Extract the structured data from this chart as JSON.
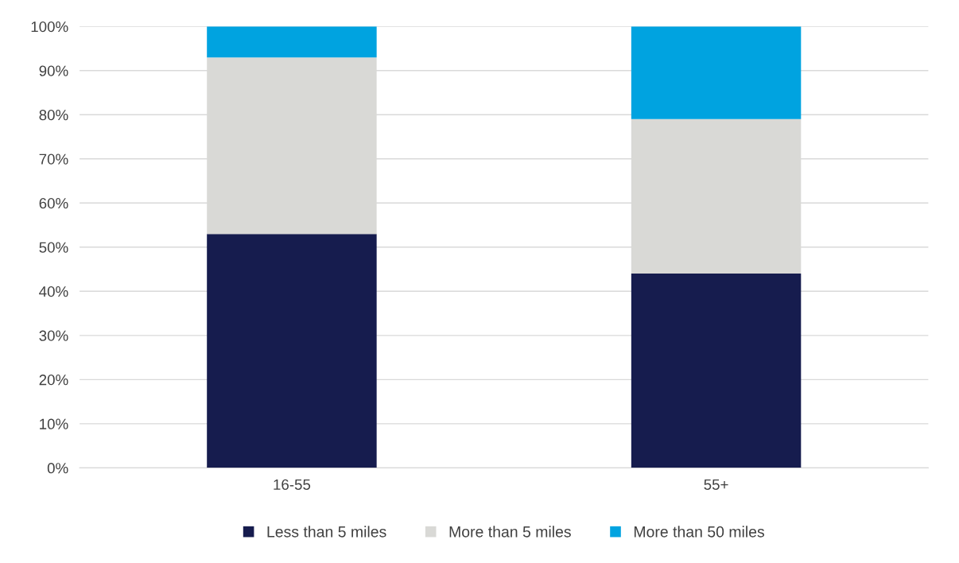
{
  "chart_data": {
    "type": "bar",
    "stacked": true,
    "categories": [
      "16-55",
      "55+"
    ],
    "series": [
      {
        "name": "Less than 5 miles",
        "color": "#161c4e",
        "values": [
          53,
          44
        ]
      },
      {
        "name": "More than 5 miles",
        "color": "#d9d9d6",
        "values": [
          40,
          35
        ]
      },
      {
        "name": "More than 50 miles",
        "color": "#00a3e0",
        "values": [
          7,
          21
        ]
      }
    ],
    "ylim": [
      0,
      100
    ],
    "yticks": [
      {
        "value": 0,
        "label": "0%"
      },
      {
        "value": 10,
        "label": "10%"
      },
      {
        "value": 20,
        "label": "20%"
      },
      {
        "value": 30,
        "label": "30%"
      },
      {
        "value": 40,
        "label": "40%"
      },
      {
        "value": 50,
        "label": "50%"
      },
      {
        "value": 60,
        "label": "60%"
      },
      {
        "value": 70,
        "label": "70%"
      },
      {
        "value": 80,
        "label": "80%"
      },
      {
        "value": 90,
        "label": "90%"
      },
      {
        "value": 100,
        "label": "100%"
      }
    ],
    "grid": "y",
    "legend": "bottom"
  }
}
